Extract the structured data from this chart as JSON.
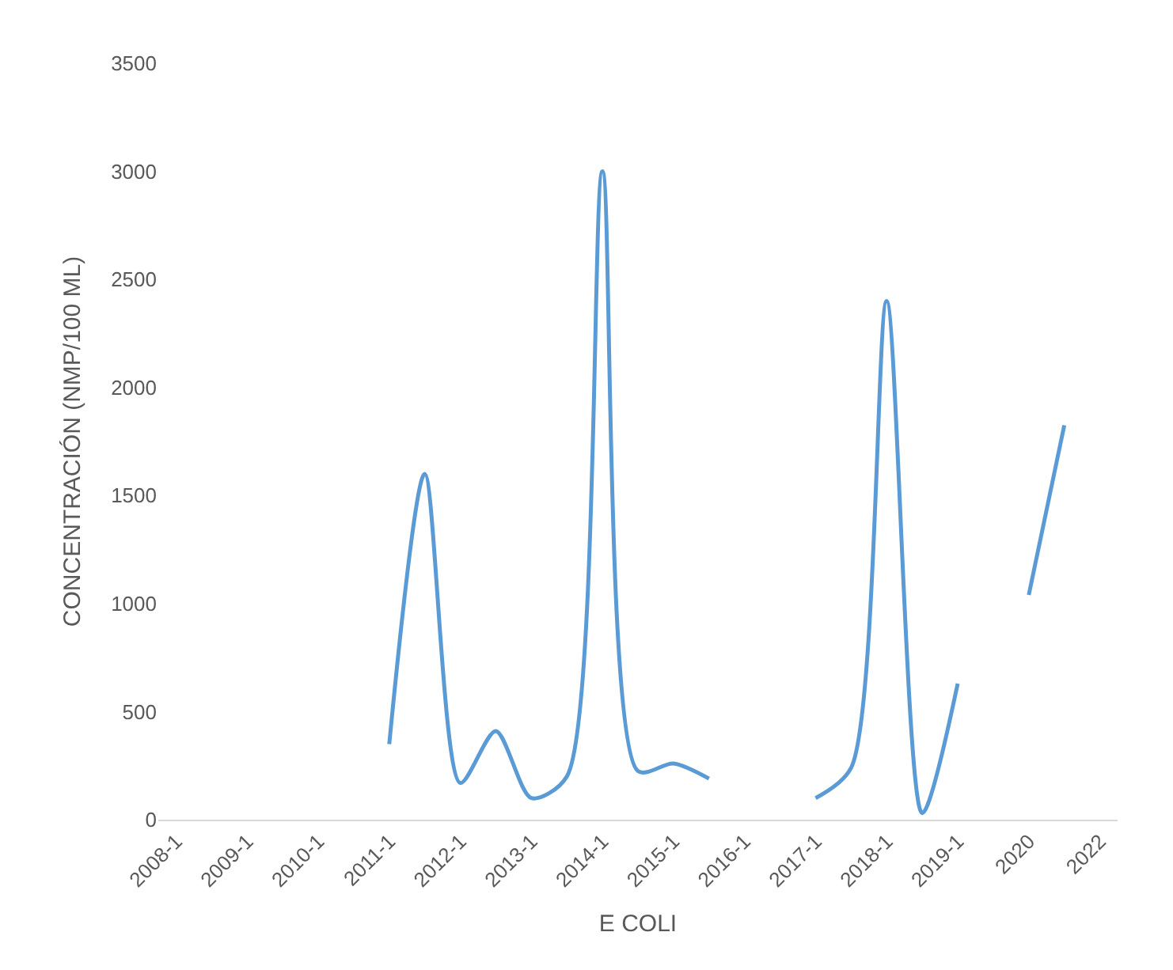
{
  "chart_data": {
    "type": "line",
    "xlabel": "E COLI",
    "ylabel": "CONCENTRACIÓN (NMP/100 ML)",
    "categories": [
      "2008-1",
      null,
      "2009-1",
      null,
      "2010-1",
      null,
      "2011-1",
      null,
      "2012-1",
      null,
      "2013-1",
      null,
      "2014-1",
      null,
      "2015-1",
      null,
      "2016-1",
      null,
      "2017-1",
      null,
      "2018-1",
      null,
      "2019-1",
      null,
      "2020",
      null,
      "2022"
    ],
    "series": [
      {
        "color": "#5b9bd5",
        "values": [
          null,
          null,
          null,
          null,
          null,
          null,
          350,
          1600,
          170,
          410,
          100,
          200,
          3000,
          225,
          260,
          190,
          null,
          null,
          100,
          240,
          2400,
          30,
          630,
          null,
          1040,
          1825,
          null
        ]
      }
    ],
    "ylim": [
      0,
      3500
    ],
    "yticks": [
      0,
      500,
      1000,
      1500,
      2000,
      2500,
      3000,
      3500
    ],
    "marker": "none",
    "line_style": "solid"
  }
}
